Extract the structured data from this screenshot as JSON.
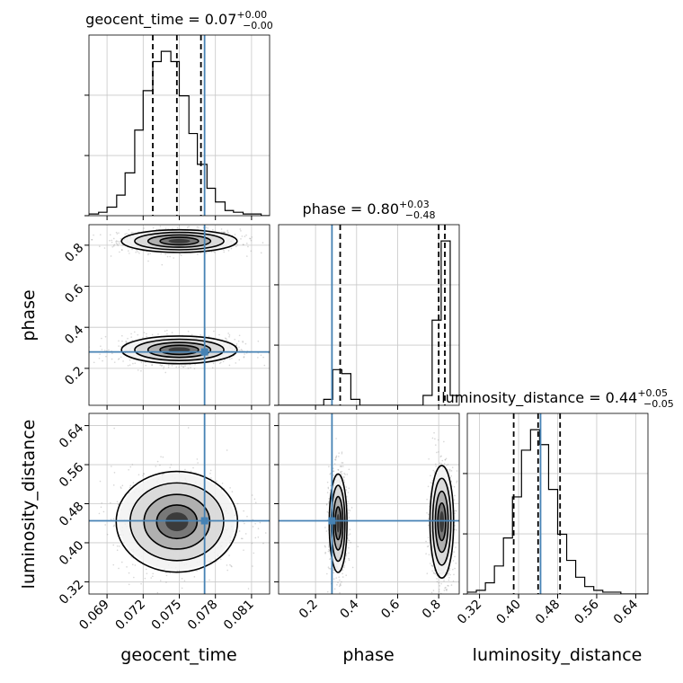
{
  "chart_data": {
    "type": "corner",
    "grid": true,
    "truth_color": "#4682b4",
    "parameters": [
      {
        "name": "geocent_time",
        "xlabel": "geocent_time",
        "ylabel": "",
        "range": [
          0.0675,
          0.0825
        ],
        "ticks": [
          0.069,
          0.072,
          0.075,
          0.078,
          0.081
        ],
        "tick_labels": [
          "0.069",
          "0.072",
          "0.075",
          "0.078",
          "0.081"
        ],
        "title": {
          "main": "geocent_time = 0.07",
          "sup": "+0.00",
          "sub": "−0.00"
        },
        "quantiles": [
          0.0728,
          0.0748,
          0.0768
        ],
        "truth": 0.0771,
        "hist_bins": [
          0.0675,
          0.0683,
          0.069,
          0.0698,
          0.0705,
          0.0713,
          0.072,
          0.0728,
          0.0735,
          0.0743,
          0.075,
          0.0758,
          0.0765,
          0.0773,
          0.078,
          0.0788,
          0.0795,
          0.0803,
          0.081,
          0.0818,
          0.0825
        ],
        "hist_values": [
          1,
          2,
          5,
          12,
          25,
          50,
          73,
          90,
          96,
          90,
          70,
          48,
          30,
          16,
          8,
          3,
          2,
          1,
          1,
          0
        ]
      },
      {
        "name": "phase",
        "xlabel": "phase",
        "ylabel": "phase",
        "range": [
          0.02,
          0.9
        ],
        "ticks": [
          0.2,
          0.4,
          0.6,
          0.8
        ],
        "tick_labels": [
          "0.2",
          "0.4",
          "0.6",
          "0.8"
        ],
        "title": {
          "main": "phase = 0.80",
          "sup": "+0.03",
          "sub": "−0.48"
        },
        "quantiles": [
          0.32,
          0.8,
          0.83
        ],
        "truth": 0.28,
        "hist_bins": [
          0.02,
          0.064,
          0.108,
          0.152,
          0.196,
          0.24,
          0.284,
          0.328,
          0.372,
          0.416,
          0.46,
          0.504,
          0.548,
          0.592,
          0.636,
          0.68,
          0.724,
          0.768,
          0.812,
          0.856,
          0.9
        ],
        "hist_values": [
          0,
          0,
          0,
          0,
          0,
          3,
          18,
          16,
          3,
          0,
          0,
          0,
          0,
          0,
          0,
          0,
          5,
          43,
          83,
          5
        ]
      },
      {
        "name": "luminosity_distance",
        "xlabel": "luminosity_distance",
        "ylabel": "luminosity_distance",
        "range": [
          0.295,
          0.665
        ],
        "ticks": [
          0.32,
          0.4,
          0.48,
          0.56,
          0.64
        ],
        "tick_labels": [
          "0.32",
          "0.40",
          "0.48",
          "0.56",
          "0.64"
        ],
        "title": {
          "main": "luminosity_distance = 0.44",
          "sup": "+0.05",
          "sub": "−0.05"
        },
        "quantiles": [
          0.39,
          0.44,
          0.485
        ],
        "truth": 0.445,
        "hist_bins": [
          0.295,
          0.3135,
          0.332,
          0.3505,
          0.369,
          0.3875,
          0.406,
          0.4245,
          0.443,
          0.4615,
          0.48,
          0.4985,
          0.517,
          0.5355,
          0.554,
          0.5725,
          0.591,
          0.6095,
          0.628,
          0.6465,
          0.665
        ],
        "hist_values": [
          1,
          2,
          6,
          15,
          30,
          52,
          77,
          88,
          80,
          56,
          32,
          18,
          9,
          4,
          2,
          1,
          1,
          0,
          0,
          0
        ]
      }
    ],
    "blobs": [
      {
        "pair": [
          "geocent_time",
          "phase"
        ],
        "cx": 0.075,
        "cy": 0.82,
        "sx": 0.002,
        "sy": 0.023
      },
      {
        "pair": [
          "geocent_time",
          "phase"
        ],
        "cx": 0.075,
        "cy": 0.29,
        "sx": 0.002,
        "sy": 0.028
      },
      {
        "pair": [
          "geocent_time",
          "luminosity_distance"
        ],
        "cx": 0.0748,
        "cy": 0.443,
        "sx": 0.0021,
        "sy": 0.043
      },
      {
        "pair": [
          "phase",
          "luminosity_distance"
        ],
        "cx": 0.31,
        "cy": 0.44,
        "sx": 0.018,
        "sy": 0.042
      },
      {
        "pair": [
          "phase",
          "luminosity_distance"
        ],
        "cx": 0.815,
        "cy": 0.443,
        "sx": 0.024,
        "sy": 0.048
      }
    ]
  }
}
